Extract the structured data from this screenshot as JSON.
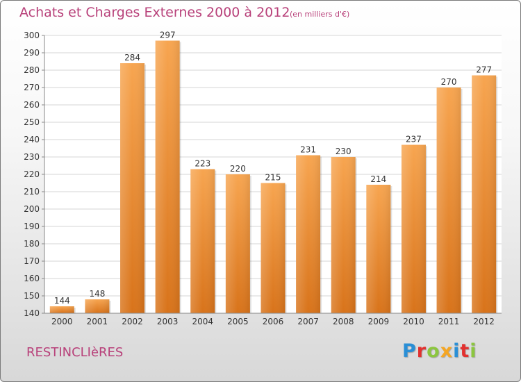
{
  "header": {
    "title": "Achats et Charges Externes 2000 à 2012",
    "subtitle": "(en milliers d'€)"
  },
  "footer": {
    "commune": "RESTINCLIèRES",
    "brand": "Proxiti",
    "brand_colors": [
      "#2a8fd6",
      "#e2312f",
      "#8cc63f",
      "#f5a623",
      "#2a8fd6",
      "#e2312f",
      "#8cc63f"
    ]
  },
  "colors": {
    "bar_top": "#f7a550",
    "bar_bottom": "#d8731a",
    "grid": "#d6d6d6",
    "axis_text": "#333333",
    "accent": "#b8417a"
  },
  "chart_data": {
    "type": "bar",
    "title": "Achats et Charges Externes 2000 à 2012",
    "subtitle": "(en milliers d'€)",
    "xlabel": "",
    "ylabel": "",
    "categories": [
      "2000",
      "2001",
      "2002",
      "2003",
      "2004",
      "2005",
      "2006",
      "2007",
      "2008",
      "2009",
      "2010",
      "2011",
      "2012"
    ],
    "values": [
      144,
      148,
      284,
      297,
      223,
      220,
      215,
      231,
      230,
      214,
      237,
      270,
      277
    ],
    "ylim": [
      140,
      300
    ],
    "yticks": [
      140,
      150,
      160,
      170,
      180,
      190,
      200,
      210,
      220,
      230,
      240,
      250,
      260,
      270,
      280,
      290,
      300
    ],
    "grid": true
  }
}
